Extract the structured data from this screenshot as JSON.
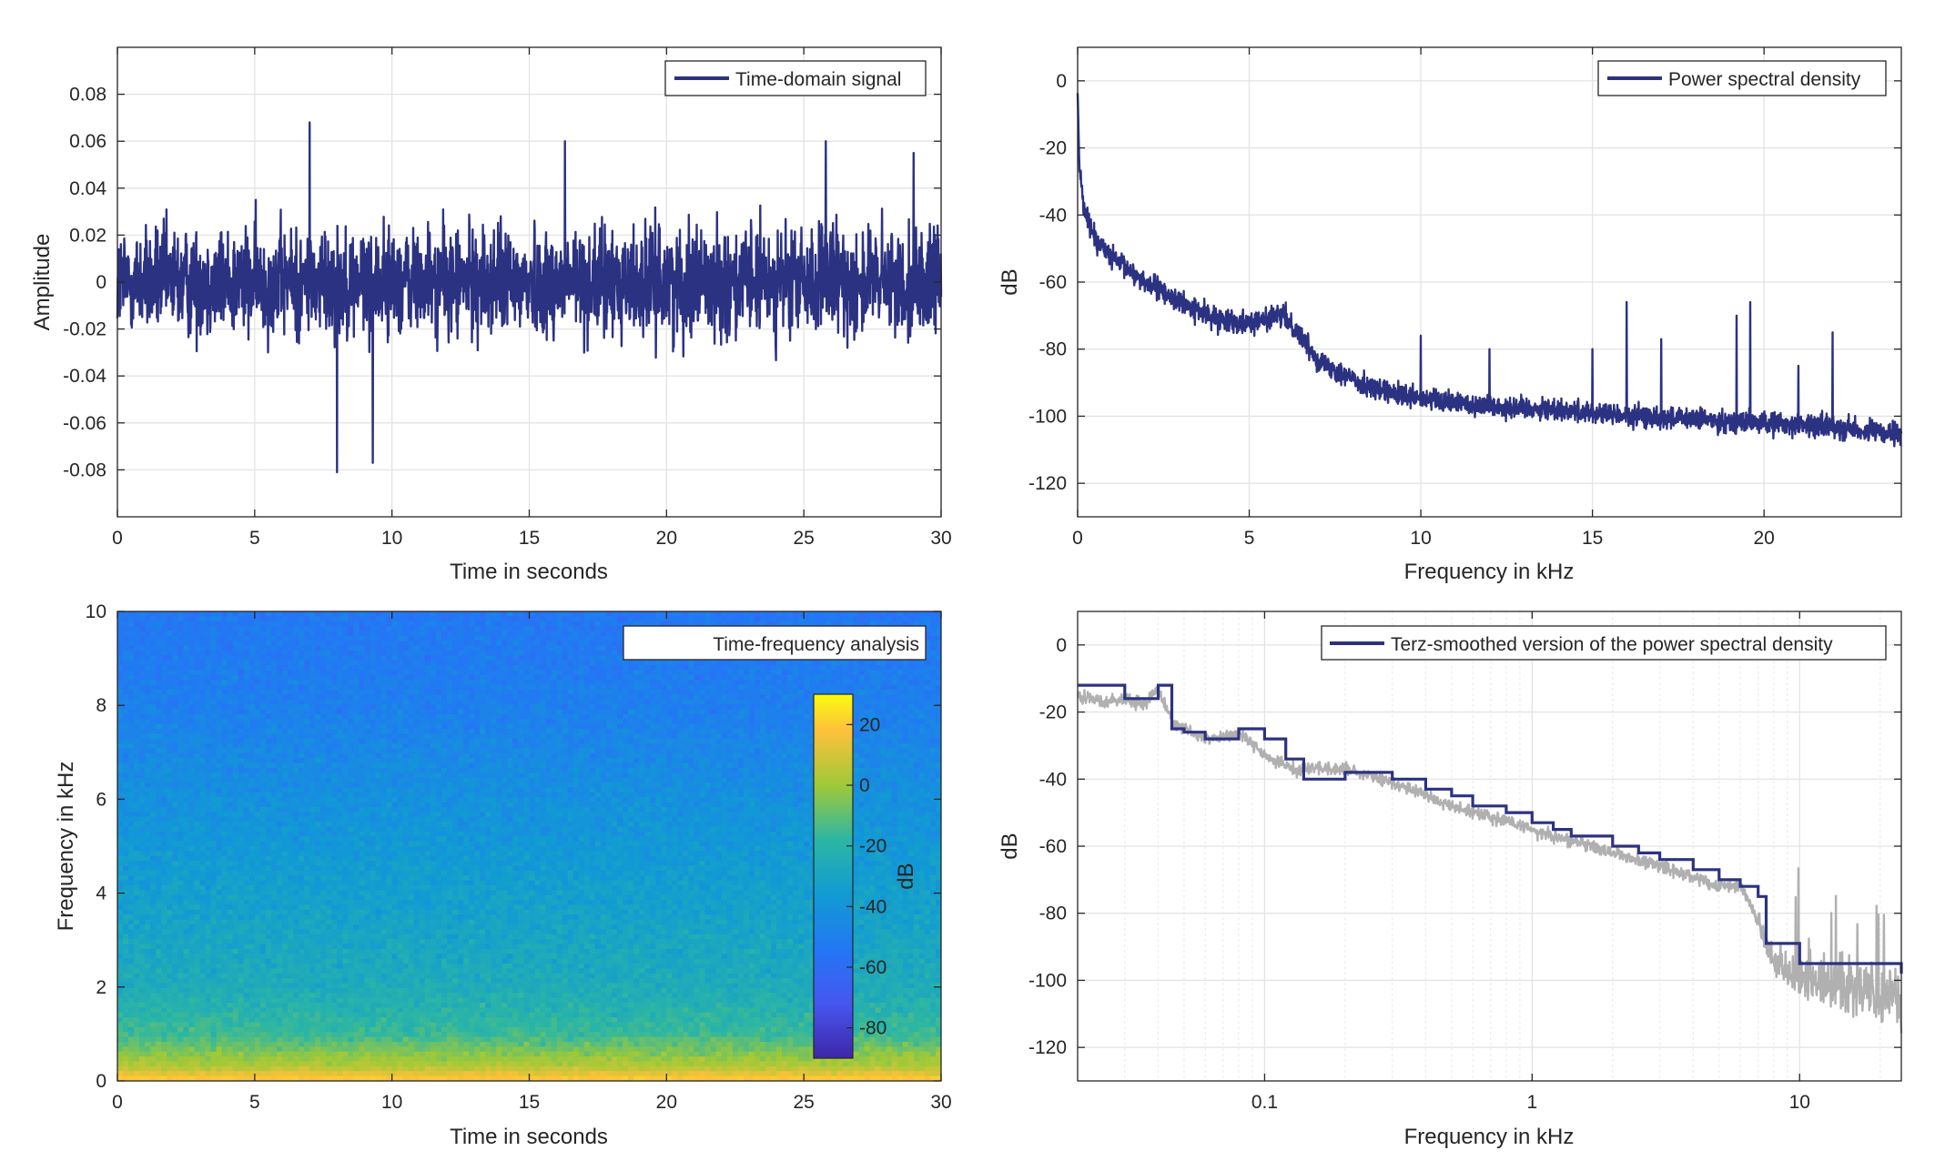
{
  "figure": {
    "colors": {
      "signal": "#2c3282",
      "raw_psd": "#b0b0b0",
      "grid": "#e3e3e3",
      "axes": "#262626",
      "background": "#ffffff"
    }
  },
  "chart_data": [
    {
      "id": "time-domain",
      "type": "line",
      "legend": [
        "Time-domain signal"
      ],
      "legend_location": "top-right",
      "series": [
        {
          "name": "Time-domain signal",
          "description": "dense noisy audio waveform",
          "envelope": 0.05,
          "peaks": [
            {
              "x": 7.0,
              "y": 0.068
            },
            {
              "x": 8.0,
              "y": -0.081
            },
            {
              "x": 9.3,
              "y": -0.077
            },
            {
              "x": 16.3,
              "y": 0.06
            },
            {
              "x": 25.8,
              "y": 0.06
            },
            {
              "x": 29.0,
              "y": 0.055
            }
          ]
        }
      ],
      "xlabel": "Time in seconds",
      "ylabel": "Amplitude",
      "xlim": [
        0,
        30
      ],
      "ylim": [
        -0.1,
        0.1
      ],
      "xticks": [
        0,
        5,
        10,
        15,
        20,
        25,
        30
      ],
      "yticks": [
        -0.08,
        -0.06,
        -0.04,
        -0.02,
        0,
        0.02,
        0.04,
        0.06,
        0.08
      ],
      "xtick_labels": [
        "0",
        "5",
        "10",
        "15",
        "20",
        "25",
        "30"
      ],
      "ytick_labels": [
        "-0.08",
        "-0.06",
        "-0.04",
        "-0.02",
        "0",
        "0.02",
        "0.04",
        "0.06",
        "0.08"
      ],
      "grid": true
    },
    {
      "id": "psd",
      "type": "line",
      "legend": [
        "Power spectral density"
      ],
      "legend_location": "top-right",
      "series": [
        {
          "name": "Power spectral density",
          "x": [
            0,
            0.05,
            0.15,
            0.3,
            0.6,
            1.0,
            2.0,
            3.0,
            4.0,
            5.0,
            5.5,
            6.0,
            6.5,
            7.0,
            8.0,
            9.0,
            10.0,
            12.0,
            14.0,
            16.0,
            18.0,
            20.0,
            22.0,
            24.0
          ],
          "y": [
            -3,
            -25,
            -35,
            -42,
            -48,
            -53,
            -60,
            -66,
            -71,
            -72,
            -71,
            -70,
            -76,
            -83,
            -89,
            -93,
            -95,
            -97,
            -98,
            -100,
            -101,
            -102,
            -103,
            -106
          ]
        }
      ],
      "spikes": [
        {
          "x": 10.0,
          "y": -76
        },
        {
          "x": 12.0,
          "y": -80
        },
        {
          "x": 15.0,
          "y": -80
        },
        {
          "x": 16.0,
          "y": -66
        },
        {
          "x": 17.0,
          "y": -77
        },
        {
          "x": 19.2,
          "y": -70
        },
        {
          "x": 19.6,
          "y": -66
        },
        {
          "x": 21.0,
          "y": -85
        },
        {
          "x": 22.0,
          "y": -75
        }
      ],
      "xlabel": "Frequency in kHz",
      "ylabel": "dB",
      "xlim": [
        0,
        24
      ],
      "ylim": [
        -130,
        10
      ],
      "xticks": [
        0,
        5,
        10,
        15,
        20
      ],
      "yticks": [
        0,
        -20,
        -40,
        -60,
        -80,
        -100,
        -120
      ],
      "xtick_labels": [
        "0",
        "5",
        "10",
        "15",
        "20"
      ],
      "ytick_labels": [
        "0",
        "-20",
        "-40",
        "-60",
        "-80",
        "-100",
        "-120"
      ],
      "grid": true
    },
    {
      "id": "spectrogram",
      "type": "heatmap",
      "legend": [
        "Time-frequency analysis"
      ],
      "legend_location": "top-right",
      "description": "spectrogram: high energy near 0 kHz decaying with frequency, roughly uniform over time",
      "freq_profile_khz": [
        0,
        0.3,
        1,
        2,
        4,
        6,
        8,
        10
      ],
      "freq_profile_db": [
        12,
        -10,
        -28,
        -36,
        -42,
        -48,
        -55,
        -58
      ],
      "xlabel": "Time in seconds",
      "ylabel": "Frequency in kHz",
      "xlim": [
        0,
        30
      ],
      "ylim": [
        0,
        10
      ],
      "xticks": [
        0,
        5,
        10,
        15,
        20,
        25,
        30
      ],
      "yticks": [
        0,
        2,
        4,
        6,
        8,
        10
      ],
      "xtick_labels": [
        "0",
        "5",
        "10",
        "15",
        "20",
        "25",
        "30"
      ],
      "ytick_labels": [
        "0",
        "2",
        "4",
        "6",
        "8",
        "10"
      ],
      "colorbar": {
        "label": "dB",
        "range": [
          -90,
          30
        ],
        "ticks": [
          20,
          0,
          -20,
          -40,
          -60,
          -80
        ],
        "tick_labels": [
          "20",
          "0",
          "-20",
          "-40",
          "-60",
          "-80"
        ],
        "colormap": "parula"
      }
    },
    {
      "id": "terz-smoothed",
      "type": "line",
      "legend": [
        "Terz-smoothed version of the power spectral density"
      ],
      "legend_location": "top-right",
      "xscale": "log",
      "series": [
        {
          "name": "raw",
          "color": "#b0b0b0",
          "x": [
            0.02,
            0.025,
            0.03,
            0.035,
            0.04,
            0.045,
            0.05,
            0.06,
            0.07,
            0.08,
            0.09,
            0.1,
            0.13,
            0.2,
            0.3,
            0.5,
            1,
            2,
            3,
            5,
            6,
            7,
            8,
            10,
            15,
            24
          ],
          "y": [
            -15,
            -17,
            -16,
            -18,
            -13,
            -23,
            -25,
            -28,
            -27,
            -26,
            -29,
            -33,
            -37,
            -37,
            -41,
            -48,
            -55,
            -62,
            -66,
            -72,
            -72,
            -82,
            -94,
            -100,
            -101,
            -106
          ]
        },
        {
          "name": "Terz-smoothed version of the power spectral density",
          "color": "#2c3282",
          "step": true,
          "x": [
            0.02,
            0.03,
            0.04,
            0.045,
            0.05,
            0.06,
            0.07,
            0.08,
            0.1,
            0.12,
            0.14,
            0.17,
            0.2,
            0.25,
            0.3,
            0.4,
            0.5,
            0.6,
            0.7,
            0.8,
            1.0,
            1.2,
            1.4,
            1.7,
            2.0,
            2.5,
            3.0,
            4.0,
            5.0,
            6.0,
            7.0,
            7.5,
            10.0,
            24.0
          ],
          "y": [
            -12,
            -16,
            -12,
            -25,
            -26,
            -28,
            -28,
            -25,
            -28,
            -34,
            -40,
            -40,
            -38,
            -38,
            -40,
            -43,
            -45,
            -48,
            -48,
            -50,
            -53,
            -55,
            -57,
            -57,
            -60,
            -62,
            -64,
            -67,
            -70,
            -72,
            -75,
            -89,
            -95,
            -98
          ]
        }
      ],
      "xlabel": "Frequency in kHz",
      "ylabel": "dB",
      "xlim": [
        0.02,
        24
      ],
      "ylim": [
        -130,
        10
      ],
      "xticks": [
        0.1,
        1,
        10
      ],
      "yticks": [
        0,
        -20,
        -40,
        -60,
        -80,
        -100,
        -120
      ],
      "xtick_labels": [
        "0.1",
        "1",
        "10"
      ],
      "ytick_labels": [
        "0",
        "-20",
        "-40",
        "-60",
        "-80",
        "-100",
        "-120"
      ],
      "grid": true
    }
  ]
}
